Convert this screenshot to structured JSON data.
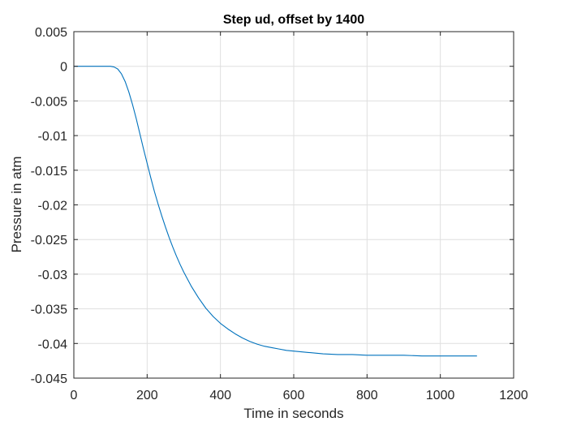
{
  "chart_data": {
    "type": "line",
    "title": "Step ud, offset by 1400",
    "xlabel": "Time in seconds",
    "ylabel": "Pressure in atm",
    "xlim": [
      0,
      1200
    ],
    "ylim": [
      -0.045,
      0.005
    ],
    "xticks": [
      0,
      200,
      400,
      600,
      800,
      1000,
      1200
    ],
    "xtick_labels": [
      "0",
      "200",
      "400",
      "600",
      "800",
      "1000",
      "1200"
    ],
    "yticks": [
      0.005,
      0,
      -0.005,
      -0.01,
      -0.015,
      -0.02,
      -0.025,
      -0.03,
      -0.035,
      -0.04,
      -0.045
    ],
    "ytick_labels": [
      "0.005",
      "0",
      "-0.005",
      "-0.01",
      "-0.015",
      "-0.02",
      "-0.025",
      "-0.03",
      "-0.035",
      "-0.04",
      "-0.045"
    ],
    "grid": true,
    "series": [
      {
        "color": "#0072BD",
        "x": [
          0,
          50,
          100,
          110,
          120,
          130,
          140,
          150,
          160,
          170,
          180,
          190,
          200,
          210,
          220,
          230,
          240,
          250,
          260,
          270,
          280,
          290,
          300,
          320,
          340,
          360,
          380,
          400,
          420,
          440,
          460,
          480,
          500,
          520,
          540,
          560,
          580,
          600,
          640,
          680,
          720,
          760,
          800,
          850,
          900,
          950,
          1000,
          1050,
          1100
        ],
        "y": [
          0,
          0,
          0,
          -0.0001,
          -0.0004,
          -0.0011,
          -0.0022,
          -0.0037,
          -0.0055,
          -0.0075,
          -0.0097,
          -0.0119,
          -0.014,
          -0.0161,
          -0.0181,
          -0.0199,
          -0.0216,
          -0.0232,
          -0.0247,
          -0.0261,
          -0.0274,
          -0.0286,
          -0.0297,
          -0.0317,
          -0.0334,
          -0.0349,
          -0.0361,
          -0.0371,
          -0.0379,
          -0.0386,
          -0.0392,
          -0.0397,
          -0.0401,
          -0.0404,
          -0.0406,
          -0.0408,
          -0.041,
          -0.0411,
          -0.0413,
          -0.0415,
          -0.0416,
          -0.0416,
          -0.0417,
          -0.0417,
          -0.0417,
          -0.0418,
          -0.0418,
          -0.0418,
          -0.0418
        ]
      }
    ]
  }
}
